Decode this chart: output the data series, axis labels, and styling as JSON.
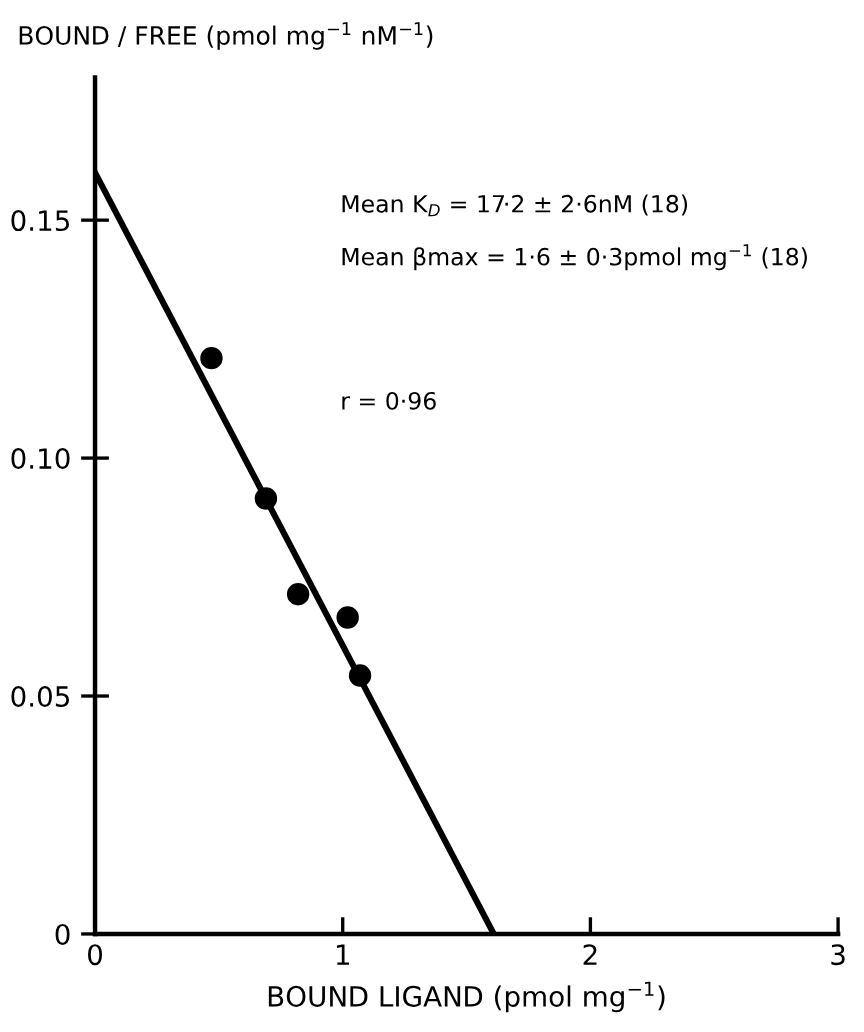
{
  "chart_data": {
    "type": "scatter",
    "ylabel": "BOUND / FREE (pmol mg$^{−1}$ nM$^{−1}$)",
    "xlabel": "BOUND LIGAND (pmol mg$^{−1}$)",
    "annotations": [
      "Mean K$_{D}$ = 17·2 ± 2·6nM (18)",
      "Mean βmax = 1·6 ± 0·3pmol mg$^{−1}$ (18)",
      "r = 0·96"
    ],
    "series": [
      {
        "color": "#000000",
        "marker": "circle",
        "x": [
          0.47,
          0.69,
          0.82,
          1.02,
          1.07
        ],
        "values": [
          0.121,
          0.0915,
          0.0714,
          0.0665,
          0.0543
        ]
      },
      {
        "type": "line",
        "color": "#000000",
        "marker": "none",
        "line_style": "solid",
        "x": [
          0,
          1.61
        ],
        "values": [
          0.16,
          0
        ]
      }
    ],
    "xlim": [
      0,
      3
    ],
    "ylim": [
      0,
      0.18
    ],
    "xticks": [
      0,
      1,
      2,
      3
    ],
    "yticks": [
      0,
      0.05,
      {
        "value": 0.1,
        "label": "0.10"
      },
      0.15
    ],
    "grid": false,
    "legend": false
  }
}
